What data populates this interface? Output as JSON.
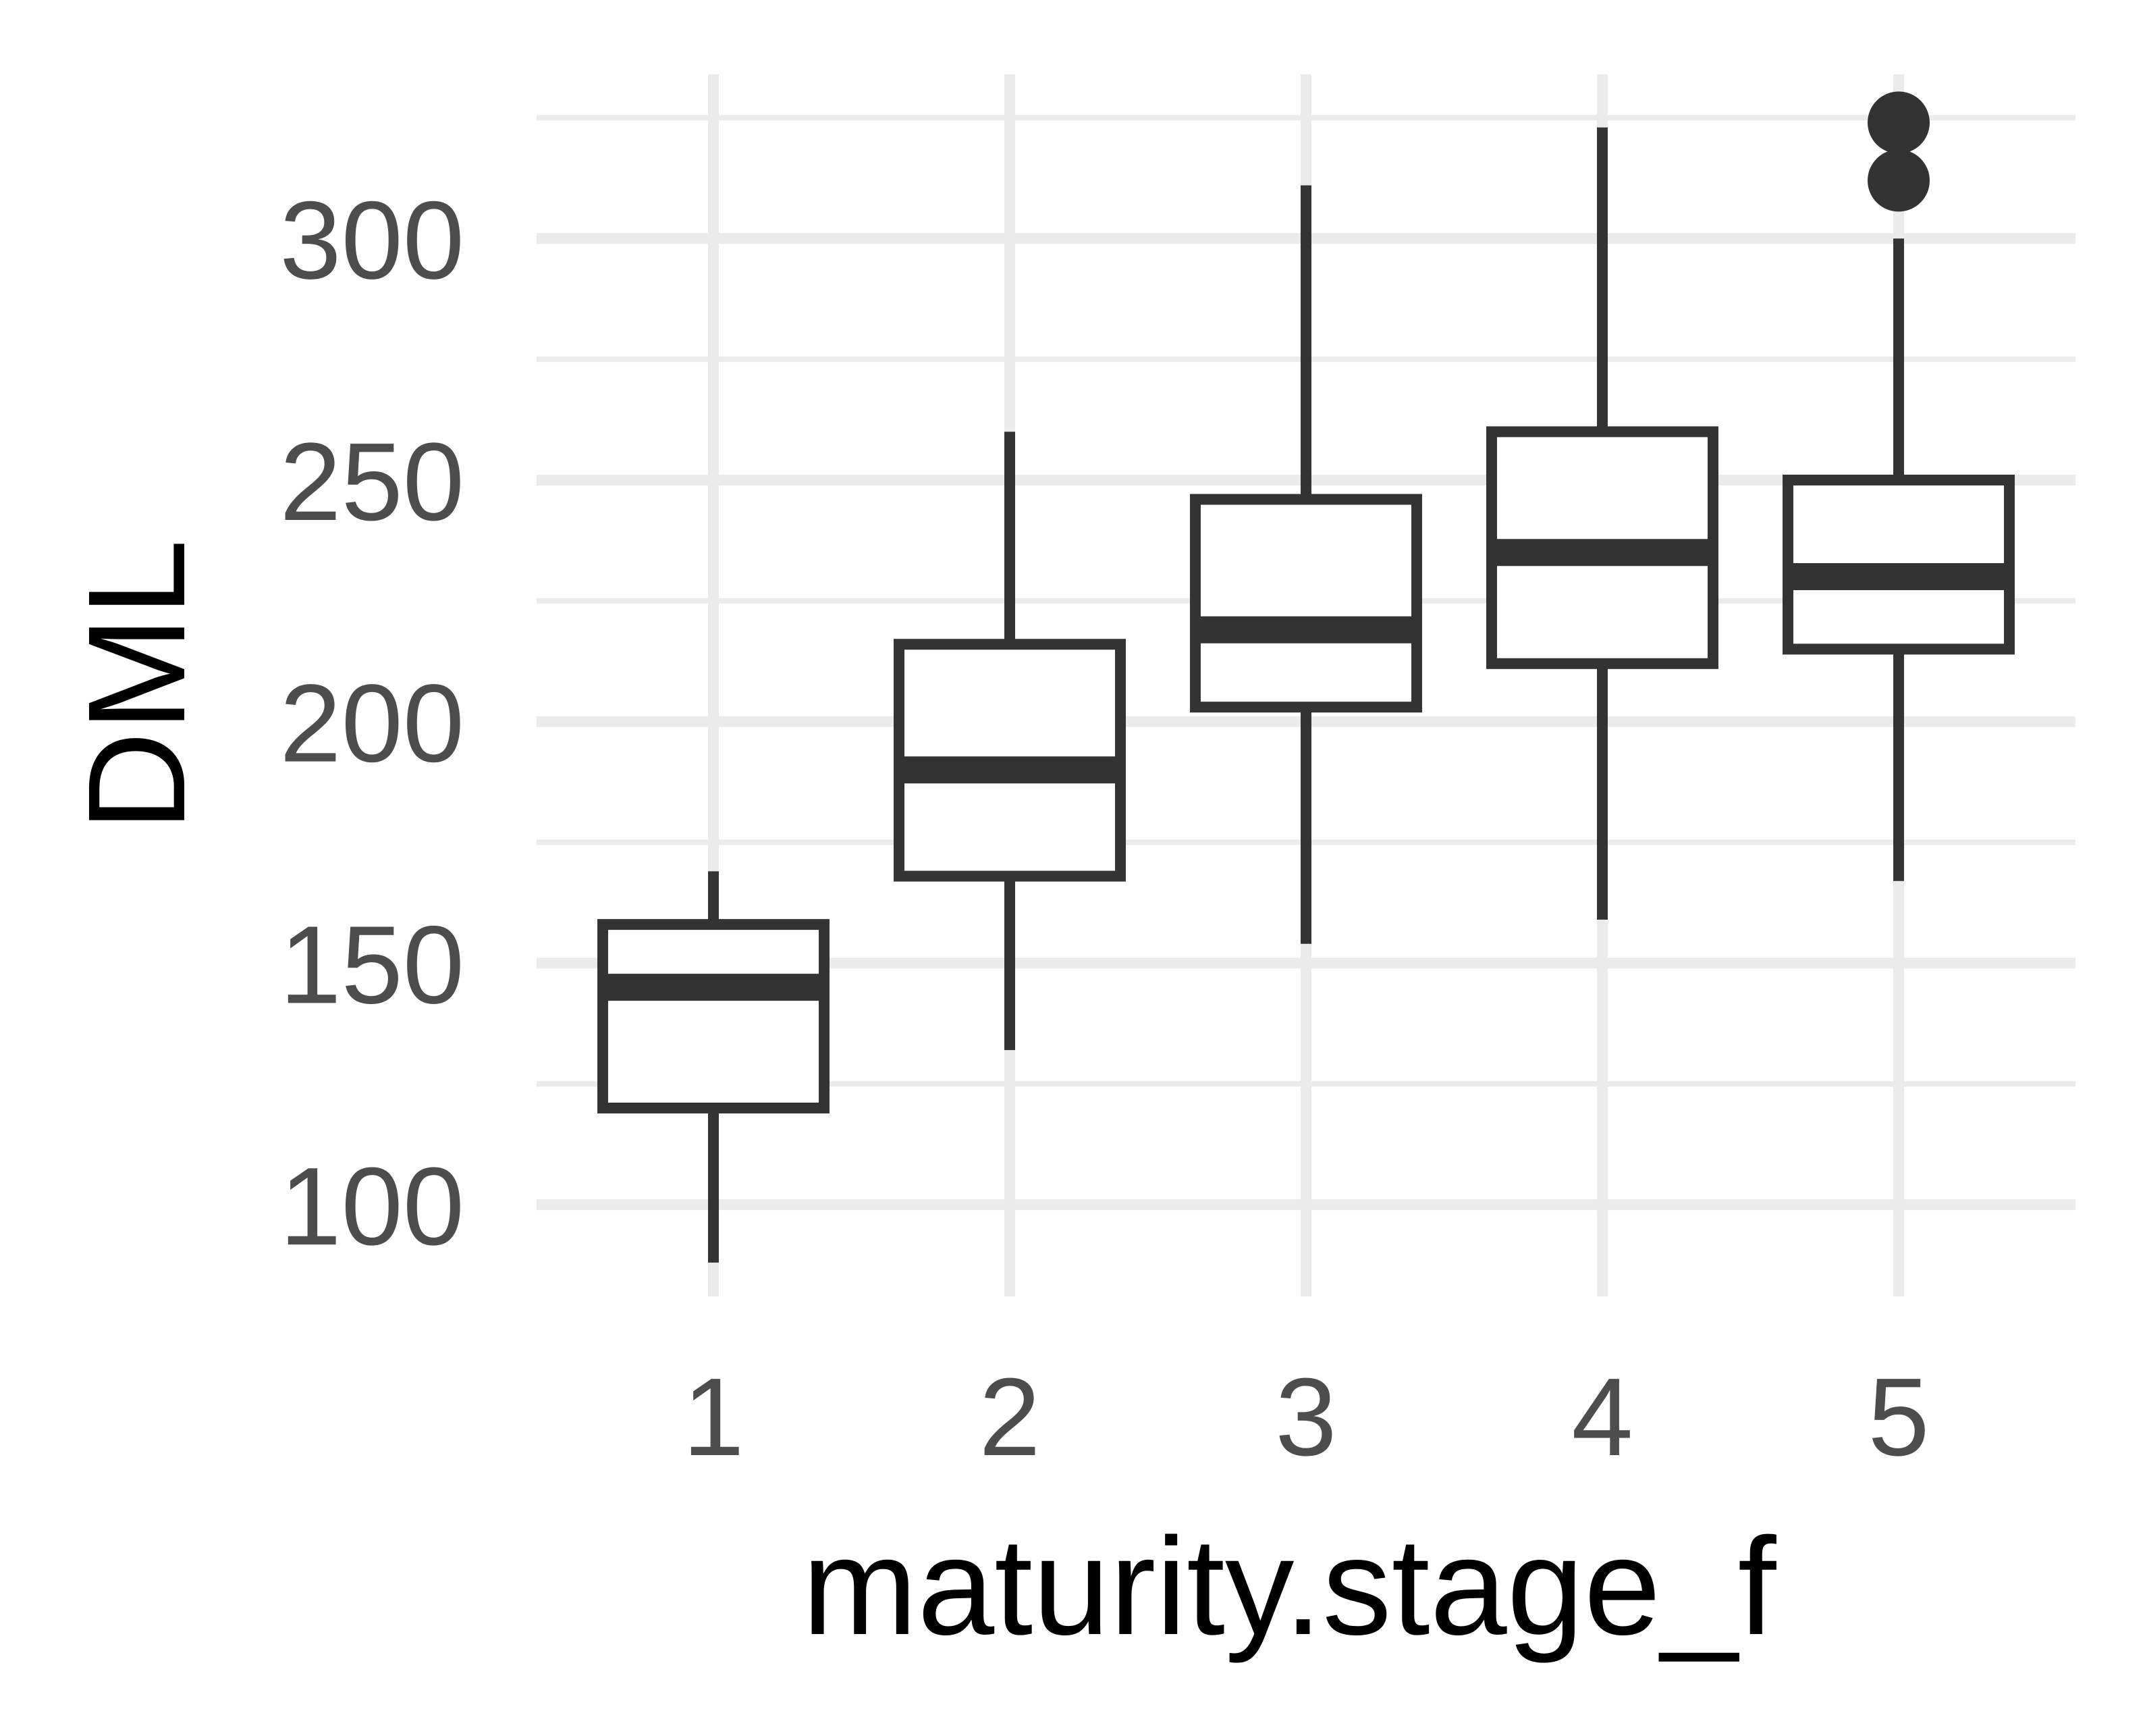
{
  "chart_data": {
    "type": "boxplot",
    "title": "",
    "xlabel": "maturity.stage_f",
    "ylabel": "DML",
    "categories": [
      "1",
      "2",
      "3",
      "4",
      "5"
    ],
    "ylim": [
      81,
      334
    ],
    "y_major_ticks": [
      100,
      150,
      200,
      250,
      300
    ],
    "y_tick_labels": [
      "100",
      "150",
      "200",
      "250",
      "300"
    ],
    "y_minor_ticks": [
      125,
      175,
      225,
      275,
      325
    ],
    "grid": true,
    "legend": "none",
    "boxes": [
      {
        "category": "1",
        "lower_whisker": 88,
        "q1": 120,
        "median": 145,
        "q3": 158,
        "upper_whisker": 169,
        "outliers": []
      },
      {
        "category": "2",
        "lower_whisker": 132,
        "q1": 168,
        "median": 190,
        "q3": 216,
        "upper_whisker": 260,
        "outliers": []
      },
      {
        "category": "3",
        "lower_whisker": 154,
        "q1": 203,
        "median": 219,
        "q3": 246,
        "upper_whisker": 311,
        "outliers": []
      },
      {
        "category": "4",
        "lower_whisker": 159,
        "q1": 212,
        "median": 235,
        "q3": 260,
        "upper_whisker": 323,
        "outliers": []
      },
      {
        "category": "5",
        "lower_whisker": 167,
        "q1": 215,
        "median": 230,
        "q3": 250,
        "upper_whisker": 300,
        "outliers": [
          312,
          324
        ]
      }
    ]
  },
  "colors": {
    "box_stroke": "#333333",
    "box_fill": "#ffffff",
    "grid": "#ebebeb",
    "tick_text": "#4d4d4d",
    "title_text": "#000000",
    "outlier": "#333333"
  }
}
